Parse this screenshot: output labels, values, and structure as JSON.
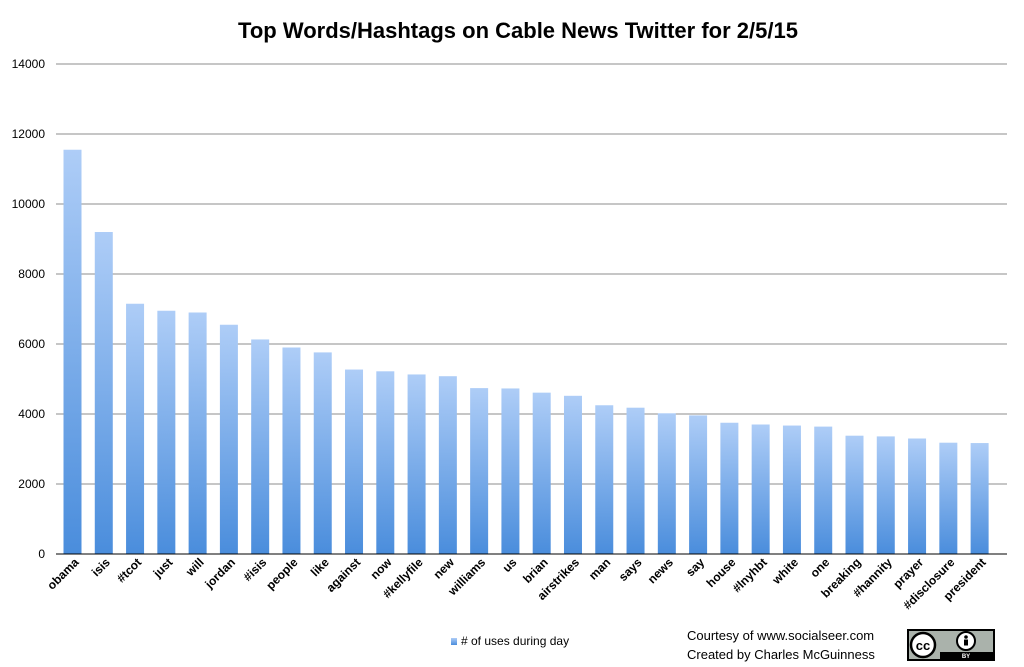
{
  "chart_data": {
    "type": "bar",
    "title": "Top Words/Hashtags on Cable News Twitter for 2/5/15",
    "xlabel": "",
    "ylabel": "",
    "ylim": [
      0,
      14000
    ],
    "yticks": [
      0,
      2000,
      4000,
      6000,
      8000,
      10000,
      12000,
      14000
    ],
    "grid": true,
    "legend_position": "bottom",
    "categories": [
      "obama",
      "isis",
      "#tcot",
      "just",
      "will",
      "jordan",
      "#isis",
      "people",
      "like",
      "against",
      "now",
      "#kellyfile",
      "new",
      "williams",
      "us",
      "brian",
      "airstrikes",
      "man",
      "says",
      "news",
      "say",
      "house",
      "#lnyhbt",
      "white",
      "one",
      "breaking",
      "#hannity",
      "prayer",
      "#disclosure",
      "president"
    ],
    "series": [
      {
        "name": "# of uses during day",
        "color_top": "#aecdf7",
        "color_bottom": "#4a8ddc",
        "values": [
          11550,
          9200,
          7150,
          6950,
          6900,
          6550,
          6130,
          5900,
          5760,
          5270,
          5220,
          5130,
          5080,
          4740,
          4730,
          4610,
          4520,
          4250,
          4180,
          4020,
          3960,
          3750,
          3700,
          3670,
          3640,
          3380,
          3360,
          3300,
          3180,
          3170
        ]
      }
    ]
  },
  "credits": {
    "line1": "Courtesy of www.socialseer.com",
    "line2": "Created by Charles McGuinness"
  },
  "badge": {
    "icon": "cc-by-license-icon",
    "cc_text": "cc",
    "by_text": "BY"
  }
}
